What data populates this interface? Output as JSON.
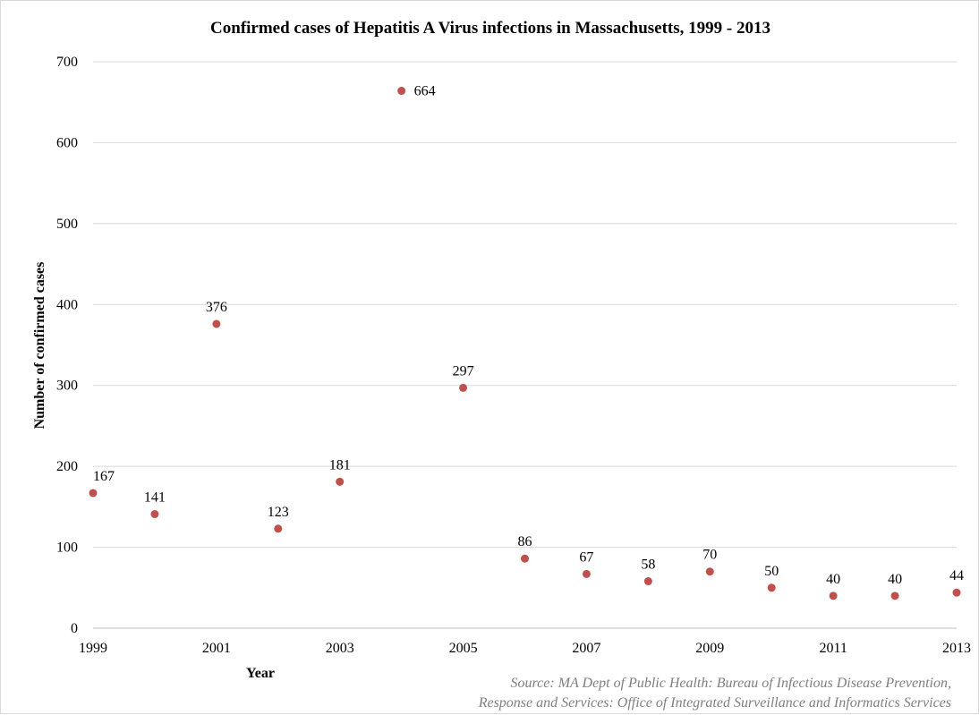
{
  "chart_data": {
    "type": "scatter",
    "title": "Confirmed cases of Hepatitis A Virus infections in Massachusetts, 1999 - 2013",
    "xlabel": "Year",
    "ylabel": "Number of confirmed cases",
    "x": [
      1999,
      2000,
      2001,
      2002,
      2003,
      2004,
      2005,
      2006,
      2007,
      2008,
      2009,
      2010,
      2011,
      2012,
      2013
    ],
    "y": [
      167,
      141,
      376,
      123,
      181,
      664,
      297,
      86,
      67,
      58,
      70,
      50,
      40,
      40,
      44
    ],
    "data_labels": [
      "167",
      "141",
      "376",
      "123",
      "181",
      "664",
      "297",
      "86",
      "67",
      "58",
      "70",
      "50",
      "40",
      "40",
      "44"
    ],
    "x_ticks": [
      "1999",
      "2001",
      "2003",
      "2005",
      "2007",
      "2009",
      "2011",
      "2013"
    ],
    "x_tick_values": [
      1999,
      2001,
      2003,
      2005,
      2007,
      2009,
      2011,
      2013
    ],
    "y_ticks": [
      "0",
      "100",
      "200",
      "300",
      "400",
      "500",
      "600",
      "700"
    ],
    "y_tick_values": [
      0,
      100,
      200,
      300,
      400,
      500,
      600,
      700
    ],
    "xlim": [
      1999,
      2013
    ],
    "ylim": [
      0,
      700
    ],
    "grid": "horizontal",
    "legend": "none",
    "marker_color": "#c0504d",
    "gridline_color": "#d9d9d9",
    "axis_color": "#bfbfbf"
  },
  "source": {
    "line1": "Source: MA Dept of Public Health: Bureau of Infectious Disease Prevention,",
    "line2": "Response and Services: Office of Integrated Surveillance and Informatics Services"
  }
}
